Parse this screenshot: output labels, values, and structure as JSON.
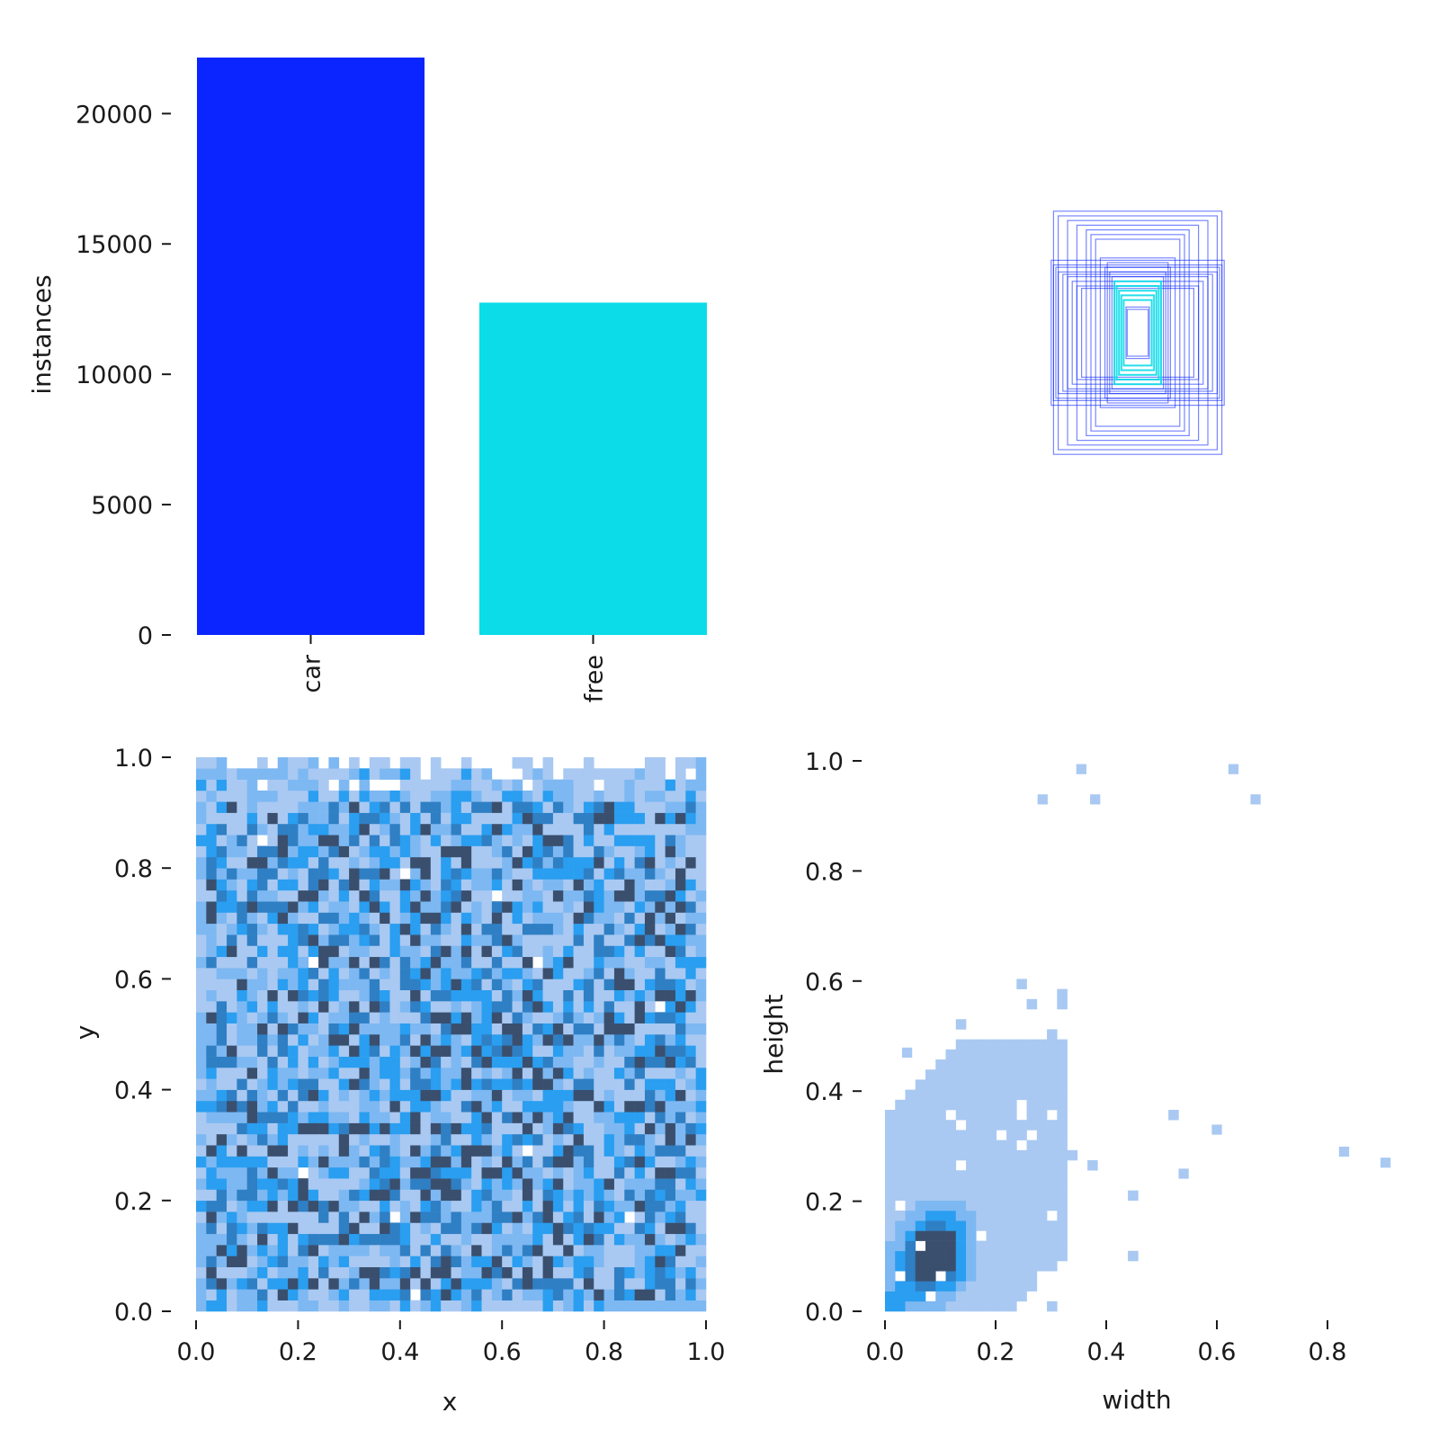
{
  "colors": {
    "car": "#0a25ff",
    "free": "#0cdce8",
    "hist_light": "#a9c9f2",
    "hist_mid": "#2a9ef0",
    "hist_dark": "#3a4f6e"
  },
  "chart_data": [
    {
      "id": "class-instances",
      "type": "bar",
      "categories": [
        "car",
        "free"
      ],
      "values": [
        22150,
        12750
      ],
      "ylabel": "instances",
      "yticks": [
        0,
        5000,
        10000,
        15000,
        20000
      ],
      "ylim": [
        0,
        22150
      ],
      "colors": [
        "#0a25ff",
        "#0cdce8"
      ]
    },
    {
      "id": "box-overlay",
      "type": "other",
      "description_colors": [
        "#0a25ff",
        "#0cdce8"
      ],
      "boxes": [
        {
          "w": 0.36,
          "h": 0.52,
          "cls": "car"
        },
        {
          "w": 0.34,
          "h": 0.5,
          "cls": "car"
        },
        {
          "w": 0.3,
          "h": 0.48,
          "cls": "car"
        },
        {
          "w": 0.26,
          "h": 0.46,
          "cls": "car"
        },
        {
          "w": 0.22,
          "h": 0.44,
          "cls": "car"
        },
        {
          "w": 0.2,
          "h": 0.42,
          "cls": "car"
        },
        {
          "w": 0.18,
          "h": 0.4,
          "cls": "car"
        },
        {
          "w": 0.37,
          "h": 0.31,
          "cls": "car"
        },
        {
          "w": 0.36,
          "h": 0.29,
          "cls": "car"
        },
        {
          "w": 0.35,
          "h": 0.28,
          "cls": "car"
        },
        {
          "w": 0.34,
          "h": 0.26,
          "cls": "car"
        },
        {
          "w": 0.32,
          "h": 0.25,
          "cls": "car"
        },
        {
          "w": 0.3,
          "h": 0.24,
          "cls": "car"
        },
        {
          "w": 0.28,
          "h": 0.22,
          "cls": "car"
        },
        {
          "w": 0.26,
          "h": 0.2,
          "cls": "car"
        },
        {
          "w": 0.24,
          "h": 0.19,
          "cls": "car"
        },
        {
          "w": 0.14,
          "h": 0.28,
          "cls": "car"
        },
        {
          "w": 0.12,
          "h": 0.26,
          "cls": "car"
        },
        {
          "w": 0.11,
          "h": 0.24,
          "cls": "car"
        },
        {
          "w": 0.16,
          "h": 0.32,
          "cls": "car"
        },
        {
          "w": 0.13,
          "h": 0.3,
          "cls": "car"
        },
        {
          "w": 0.1,
          "h": 0.22,
          "cls": "free"
        },
        {
          "w": 0.09,
          "h": 0.2,
          "cls": "free"
        },
        {
          "w": 0.08,
          "h": 0.18,
          "cls": "free"
        },
        {
          "w": 0.07,
          "h": 0.16,
          "cls": "free"
        },
        {
          "w": 0.06,
          "h": 0.14,
          "cls": "free"
        },
        {
          "w": 0.05,
          "h": 0.11,
          "cls": "car"
        },
        {
          "w": 0.045,
          "h": 0.1,
          "cls": "car"
        }
      ]
    },
    {
      "id": "xy-histogram",
      "type": "heatmap",
      "xlabel": "x",
      "ylabel": "y",
      "xlim": [
        0,
        1
      ],
      "ylim": [
        0,
        1
      ],
      "xticks": [
        0.0,
        0.2,
        0.4,
        0.6,
        0.8,
        1.0
      ],
      "yticks": [
        0.0,
        0.2,
        0.4,
        0.6,
        0.8,
        1.0
      ],
      "tick_labels": [
        "0.0",
        "0.2",
        "0.4",
        "0.6",
        "0.8",
        "1.0"
      ],
      "bins": 50,
      "density_note": "roughly uniform over x 0–1, y 0–0.98; sparse at top band"
    },
    {
      "id": "wh-histogram",
      "type": "heatmap",
      "xlabel": "width",
      "ylabel": "height",
      "xlim": [
        0,
        0.92
      ],
      "ylim": [
        0,
        1.0
      ],
      "xticks": [
        0.0,
        0.2,
        0.4,
        0.6,
        0.8
      ],
      "xtick_labels": [
        "0.0",
        "0.2",
        "0.4",
        "0.6",
        "0.8"
      ],
      "yticks": [
        0.0,
        0.2,
        0.4,
        0.6,
        0.8,
        1.0
      ],
      "ytick_labels": [
        "0.0",
        "0.2",
        "0.4",
        "0.6",
        "0.8",
        "1.0"
      ],
      "peak": {
        "width": 0.09,
        "height": 0.11
      },
      "outliers": [
        {
          "width": 0.355,
          "height": 0.985
        },
        {
          "width": 0.63,
          "height": 0.985
        },
        {
          "width": 0.67,
          "height": 0.93
        },
        {
          "width": 0.285,
          "height": 0.93
        },
        {
          "width": 0.38,
          "height": 0.93
        },
        {
          "width": 0.83,
          "height": 0.29
        },
        {
          "width": 0.905,
          "height": 0.27
        },
        {
          "width": 0.6,
          "height": 0.33
        },
        {
          "width": 0.54,
          "height": 0.25
        },
        {
          "width": 0.04,
          "height": 0.47
        }
      ]
    }
  ]
}
